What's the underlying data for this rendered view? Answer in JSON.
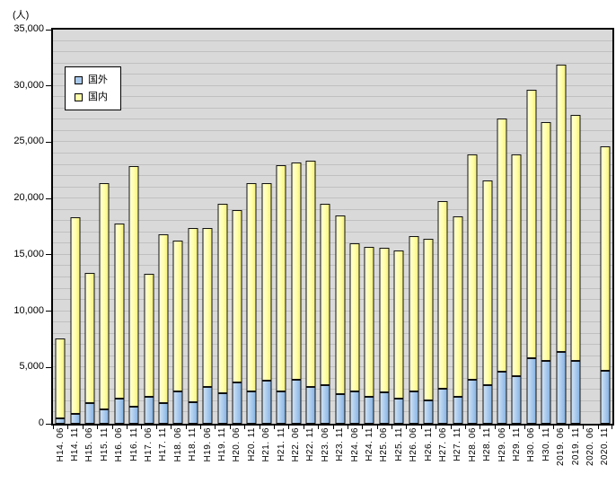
{
  "unit_label": "(人)",
  "legend": {
    "items": [
      {
        "label": "国外",
        "color": "#a9c9ec"
      },
      {
        "label": "国内",
        "color": "#ffffa8"
      }
    ]
  },
  "y_axis": {
    "tick_labels": [
      "35,000",
      "30,000",
      "25,000",
      "20,000",
      "15,000",
      "10,000",
      "5,000",
      "0"
    ],
    "max": 35000,
    "min": 0,
    "major_step": 5000,
    "minor_step": 1000
  },
  "chart_data": {
    "type": "bar",
    "stacked": true,
    "grid": true,
    "legend_position": "top-left-inside",
    "title": "",
    "xlabel": "",
    "ylabel": "(人)",
    "ylim": [
      0,
      35000
    ],
    "categories": [
      "H14. 06",
      "H14. 11",
      "H15. 06",
      "H15. 11",
      "H16. 06",
      "H16. 11",
      "H17. 06",
      "H17. 11",
      "H18. 06",
      "H18. 11",
      "H19. 06",
      "H19. 11",
      "H20. 06",
      "H20. 11",
      "H21. 06",
      "H21. 11",
      "H22. 06",
      "H22. 11",
      "H23. 06",
      "H23. 11",
      "H24. 06",
      "H24. 11",
      "H25. 06",
      "H25. 11",
      "H26. 06",
      "H26. 11",
      "H27. 06",
      "H27. 11",
      "H28. 06",
      "H28. 11",
      "H29. 06",
      "H29. 11",
      "H30. 06",
      "H30. 11",
      "2019. 06",
      "2019. 11",
      "2020. 06",
      "2020. 11"
    ],
    "series": [
      {
        "name": "国外",
        "color": "#a9c9ec",
        "values": [
          500,
          900,
          1800,
          1300,
          2200,
          1500,
          2400,
          1800,
          2900,
          1900,
          3300,
          2700,
          3700,
          2900,
          3800,
          2900,
          3900,
          3300,
          3400,
          2600,
          2900,
          2400,
          2800,
          2200,
          2900,
          2100,
          3100,
          2400,
          3900,
          3400,
          4600,
          4200,
          5800,
          5600,
          6400,
          5600,
          null,
          4700
        ]
      },
      {
        "name": "国内",
        "color": "#ffffa8",
        "values": [
          7100,
          17400,
          11600,
          20100,
          15600,
          21400,
          10900,
          15000,
          13400,
          15500,
          14100,
          16800,
          15300,
          18500,
          17600,
          20100,
          19300,
          20100,
          16100,
          15900,
          13100,
          13300,
          12800,
          13200,
          13800,
          14300,
          16700,
          16000,
          20000,
          18200,
          22500,
          19700,
          23900,
          21200,
          25500,
          21800,
          null,
          19900
        ]
      }
    ]
  }
}
